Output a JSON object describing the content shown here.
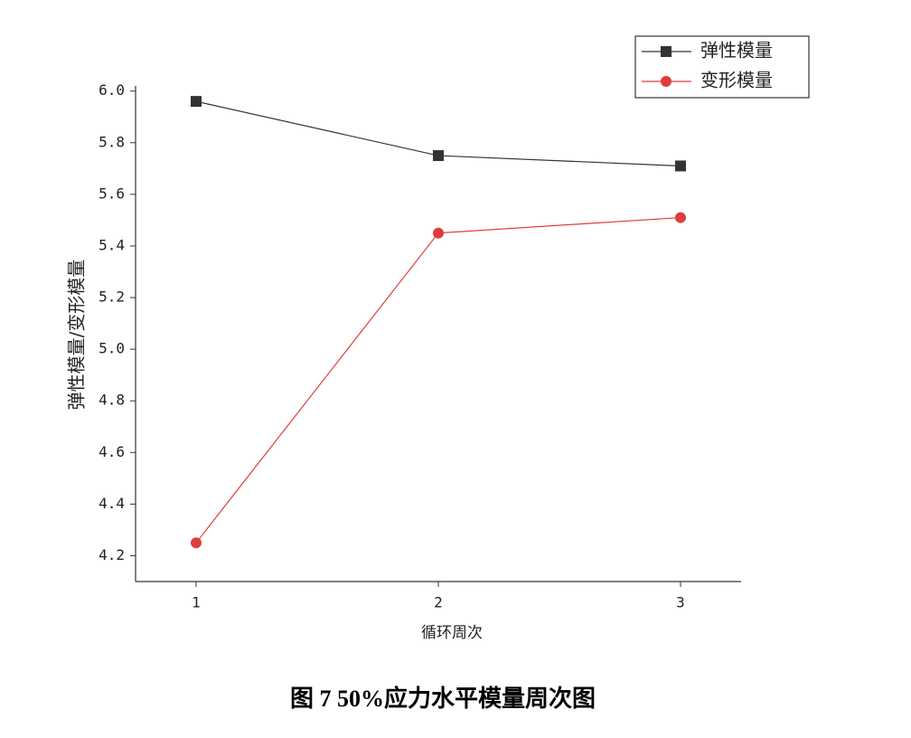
{
  "chart_data": {
    "type": "line",
    "caption": "图 7  50%应力水平模量周次图",
    "x_label": "循环周次",
    "y_label": "弹性模量/变形模量",
    "x": [
      1,
      2,
      3
    ],
    "series": [
      {
        "name": "弹性模量",
        "color": "#333333",
        "marker": "square",
        "values": [
          5.96,
          5.75,
          5.71
        ]
      },
      {
        "name": "变形模量",
        "color": "#e03c3c",
        "marker": "circle",
        "values": [
          4.25,
          5.45,
          5.51
        ]
      }
    ],
    "xlim": [
      0.75,
      3.25
    ],
    "xticks": [
      1,
      2,
      3
    ],
    "ylim": [
      4.1,
      6.02
    ],
    "yticks": [
      4.2,
      4.4,
      4.6,
      4.8,
      {
        "value": 5,
        "label": "5.0"
      },
      5.2,
      5.4,
      5.6,
      5.8,
      {
        "value": 6,
        "label": "6.0"
      }
    ],
    "legend": "upper right"
  }
}
